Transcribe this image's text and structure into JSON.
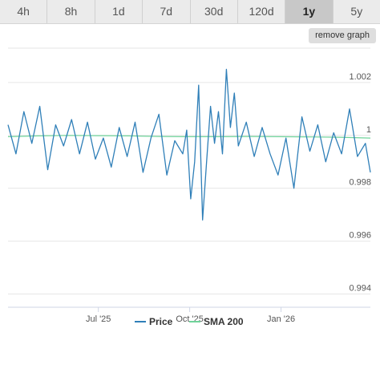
{
  "tabs": [
    {
      "label": "4h",
      "active": false
    },
    {
      "label": "8h",
      "active": false
    },
    {
      "label": "1d",
      "active": false
    },
    {
      "label": "7d",
      "active": false
    },
    {
      "label": "30d",
      "active": false
    },
    {
      "label": "120d",
      "active": false
    },
    {
      "label": "1y",
      "active": true
    },
    {
      "label": "5y",
      "active": false
    }
  ],
  "remove_graph_label": "remove graph",
  "colors": {
    "price": "#2f7fb8",
    "sma": "#6fd39a"
  },
  "chart_data": {
    "type": "line",
    "title": "",
    "xlabel": "",
    "ylabel": "",
    "x_start": "2025-04-01",
    "x_end": "2026-04-01",
    "x_ticks": [
      {
        "label": "Jul '25",
        "date": "2025-07-01"
      },
      {
        "label": "Oct '25",
        "date": "2025-10-01"
      },
      {
        "label": "Jan '26",
        "date": "2026-01-01"
      }
    ],
    "y_ticks": [
      0.994,
      0.996,
      0.998,
      1,
      1.002
    ],
    "y_tick_labels": [
      "0.994",
      "0.996",
      "0.998",
      "1",
      "1.002"
    ],
    "ylim": [
      0.9935,
      1.0033
    ],
    "grid": "horizontal",
    "legend_position": "bottom-center",
    "series": [
      {
        "name": "Price",
        "color": "#2f7fb8",
        "x": [
          "2025-04-01",
          "2025-04-09",
          "2025-04-17",
          "2025-04-25",
          "2025-05-03",
          "2025-05-11",
          "2025-05-19",
          "2025-05-27",
          "2025-06-04",
          "2025-06-12",
          "2025-06-20",
          "2025-06-28",
          "2025-07-06",
          "2025-07-14",
          "2025-07-22",
          "2025-07-30",
          "2025-08-07",
          "2025-08-15",
          "2025-08-23",
          "2025-08-31",
          "2025-09-08",
          "2025-09-16",
          "2025-09-24",
          "2025-09-28",
          "2025-10-02",
          "2025-10-06",
          "2025-10-10",
          "2025-10-14",
          "2025-10-18",
          "2025-10-22",
          "2025-10-26",
          "2025-10-30",
          "2025-11-03",
          "2025-11-07",
          "2025-11-11",
          "2025-11-15",
          "2025-11-19",
          "2025-11-27",
          "2025-12-05",
          "2025-12-13",
          "2025-12-21",
          "2025-12-29",
          "2026-01-06",
          "2026-01-14",
          "2026-01-22",
          "2026-01-30",
          "2026-02-07",
          "2026-02-15",
          "2026-02-23",
          "2026-03-03",
          "2026-03-11",
          "2026-03-19",
          "2026-03-27",
          "2026-04-01"
        ],
        "values": [
          1.0004,
          0.9993,
          1.0009,
          0.9997,
          1.0011,
          0.9987,
          1.0004,
          0.9996,
          1.0006,
          0.9993,
          1.0005,
          0.9991,
          0.9999,
          0.9988,
          1.0003,
          0.9992,
          1.0005,
          0.9986,
          0.9999,
          1.0008,
          0.9985,
          0.9998,
          0.9993,
          1.0002,
          0.9976,
          0.999,
          1.0019,
          0.9968,
          0.999,
          1.0011,
          0.9997,
          1.0009,
          0.9993,
          1.0025,
          1.0003,
          1.0016,
          0.9996,
          1.0005,
          0.9992,
          1.0003,
          0.9993,
          0.9985,
          0.9999,
          0.998,
          1.0007,
          0.9994,
          1.0004,
          0.999,
          1.0001,
          0.9993,
          1.001,
          0.9992,
          0.9997,
          0.9986
        ]
      },
      {
        "name": "SMA 200",
        "color": "#6fd39a",
        "x": [
          "2025-04-01",
          "2025-05-01",
          "2025-06-01",
          "2025-07-01",
          "2025-08-01",
          "2025-09-01",
          "2025-10-01",
          "2025-11-01",
          "2025-12-01",
          "2026-01-01",
          "2026-02-01",
          "2026-03-01",
          "2026-04-01"
        ],
        "values": [
          0.99995,
          0.99998,
          1.0,
          0.99999,
          0.99998,
          0.99996,
          0.99995,
          0.99995,
          0.99996,
          0.99995,
          0.99994,
          0.99993,
          0.9999
        ]
      }
    ]
  }
}
